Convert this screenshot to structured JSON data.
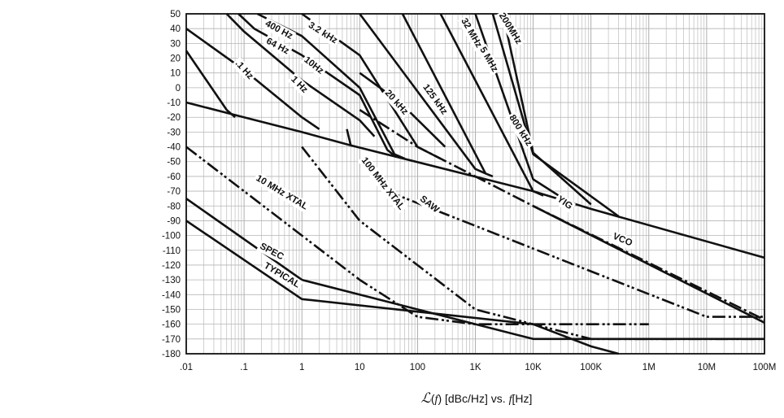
{
  "chart_data": {
    "type": "line",
    "title": "",
    "xlabel": {
      "symbol": "ℒ",
      "arg_open": "(",
      "arg_var": "f",
      "arg_close": ")",
      "units": " [dBc/Hz] vs. ",
      "var": "f",
      "var_units": "[Hz]"
    },
    "ylabel": "",
    "x_scale": "log",
    "xlim": [
      0.01,
      100000000
    ],
    "ylim": [
      -180,
      50
    ],
    "x_tick_values": [
      0.01,
      0.1,
      1,
      10,
      100,
      1000,
      10000,
      100000,
      1000000,
      10000000,
      100000000
    ],
    "x_tick_labels": [
      ".01",
      ".1",
      "1",
      "10",
      "100",
      "1K",
      "10K",
      "100K",
      "1M",
      "10M",
      "100M"
    ],
    "y_ticks": [
      50,
      40,
      30,
      20,
      10,
      0,
      -10,
      -20,
      -30,
      -40,
      -50,
      -60,
      -70,
      -80,
      -90,
      -100,
      -110,
      -120,
      -130,
      -140,
      -150,
      -160,
      -170,
      -180
    ],
    "grid": true,
    "series": [
      {
        "name": ".1 Hz",
        "style": "solid",
        "points": [
          [
            0.01,
            25
          ],
          [
            0.05,
            -15
          ],
          [
            0.07,
            -20
          ]
        ]
      },
      {
        "name": "1 Hz",
        "style": "solid",
        "points": [
          [
            0.01,
            40
          ],
          [
            0.1,
            12
          ],
          [
            1,
            -20
          ],
          [
            2,
            -28
          ]
        ]
      },
      {
        "name": "10Hz",
        "style": "solid",
        "points": [
          [
            0.05,
            50
          ],
          [
            0.1,
            38
          ],
          [
            1,
            5
          ],
          [
            10,
            -22
          ],
          [
            18,
            -33
          ]
        ]
      },
      {
        "name": "64 Hz",
        "style": "solid",
        "points": [
          [
            0.08,
            50
          ],
          [
            0.15,
            40
          ],
          [
            1,
            22
          ],
          [
            10,
            -5
          ],
          [
            30,
            -42
          ],
          [
            40,
            -46
          ]
        ]
      },
      {
        "name": "400 Hz",
        "style": "solid",
        "points": [
          [
            0.17,
            50
          ],
          [
            1,
            35
          ],
          [
            10,
            0
          ],
          [
            40,
            -45
          ],
          [
            60,
            -48
          ]
        ]
      },
      {
        "name": "3.2 kHz",
        "style": "solid",
        "points": [
          [
            1,
            50
          ],
          [
            10,
            22
          ],
          [
            100,
            -40
          ],
          [
            250,
            -48
          ]
        ]
      },
      {
        "name": "20 kHz",
        "style": "solid",
        "points": [
          [
            10,
            50
          ],
          [
            1000,
            -55
          ],
          [
            1500,
            -58
          ]
        ]
      },
      {
        "name": "125 kHz",
        "style": "solid",
        "points": [
          [
            55,
            50
          ],
          [
            1500,
            -58
          ],
          [
            2000,
            -60
          ]
        ]
      },
      {
        "name": "800 kHz",
        "style": "solid",
        "points": [
          [
            250,
            50
          ],
          [
            10000,
            -70
          ],
          [
            15000,
            -73
          ]
        ]
      },
      {
        "name": "5 MHz",
        "style": "solid",
        "points": [
          [
            1000,
            50
          ],
          [
            10000,
            -62
          ],
          [
            40000,
            -77
          ]
        ]
      },
      {
        "name": "32 MHz",
        "style": "solid",
        "points": [
          [
            2000,
            50
          ],
          [
            10000,
            -45
          ],
          [
            300000,
            -87
          ]
        ]
      },
      {
        "name": "200MHz",
        "style": "solid",
        "points": [
          [
            3000,
            50
          ],
          [
            10000,
            -44
          ],
          [
            100000,
            -79
          ]
        ]
      },
      {
        "name": "",
        "style": "solid",
        "points": [
          [
            10,
            10
          ],
          [
            50,
            -10
          ],
          [
            300,
            -40
          ]
        ]
      },
      {
        "name": "",
        "style": "solid",
        "points": [
          [
            6,
            -28
          ],
          [
            7,
            -39
          ]
        ]
      },
      {
        "name": "",
        "style": "solid",
        "points": [
          [
            0.01,
            -10
          ],
          [
            0.1,
            -20
          ],
          [
            1,
            -30
          ],
          [
            7,
            -39
          ],
          [
            10000,
            -70
          ],
          [
            100000,
            -82
          ],
          [
            100000000,
            -115
          ]
        ]
      },
      {
        "name": "VCO",
        "style": "solid",
        "points": [
          [
            10000,
            -80
          ],
          [
            100000000,
            -159
          ]
        ]
      },
      {
        "name": "YIG",
        "style": "dashdot",
        "points": [
          [
            10,
            -15
          ],
          [
            100,
            -40
          ],
          [
            10000,
            -80
          ],
          [
            100000000,
            -157
          ]
        ]
      },
      {
        "name": "SAW",
        "style": "dashdotdot",
        "points": [
          [
            30,
            -70
          ],
          [
            10000000,
            -155
          ],
          [
            100000000,
            -155
          ]
        ]
      },
      {
        "name": "100 MHz XTAL",
        "style": "dashdotdot",
        "points": [
          [
            1,
            -40
          ],
          [
            10,
            -90
          ],
          [
            100,
            -120
          ],
          [
            1000,
            -150
          ],
          [
            10000,
            -160
          ],
          [
            100000,
            -170
          ],
          [
            100000000,
            -170
          ]
        ]
      },
      {
        "name": "10 MHz XTAL",
        "style": "dashdotdot",
        "points": [
          [
            0.01,
            -40
          ],
          [
            1,
            -100
          ],
          [
            10,
            -130
          ],
          [
            100,
            -155
          ],
          [
            1000,
            -160
          ],
          [
            10000,
            -160
          ],
          [
            1000000,
            -160
          ]
        ]
      },
      {
        "name": "SPEC",
        "style": "solid",
        "points": [
          [
            0.01,
            -75
          ],
          [
            1,
            -130
          ],
          [
            10000,
            -170
          ],
          [
            100000000,
            -170
          ]
        ]
      },
      {
        "name": "TYPICAL",
        "style": "solid",
        "points": [
          [
            0.01,
            -90
          ],
          [
            1,
            -143
          ],
          [
            10000,
            -160
          ],
          [
            100000,
            -175
          ],
          [
            300000,
            -180
          ]
        ]
      }
    ]
  }
}
